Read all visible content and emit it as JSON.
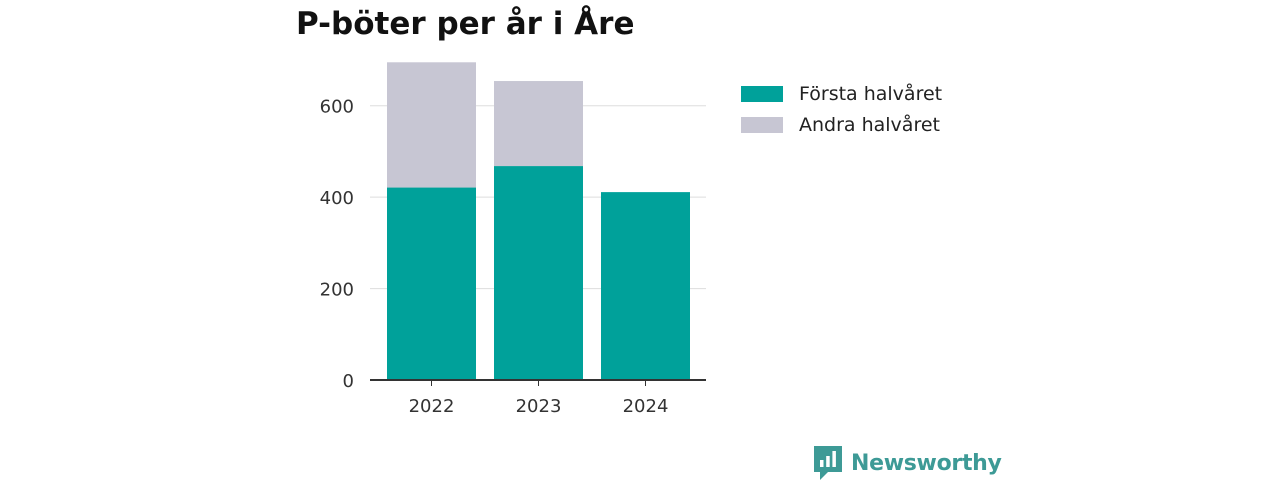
{
  "chart_data": {
    "type": "bar",
    "stacked": true,
    "title": "P-böter per år i Åre",
    "xlabel": "",
    "ylabel": "",
    "categories": [
      "2022",
      "2023",
      "2024"
    ],
    "series": [
      {
        "name": "Första halvåret",
        "values": [
          421,
          468,
          411
        ],
        "color": "#00a19a"
      },
      {
        "name": "Andra halvåret",
        "values": [
          274,
          186,
          0
        ],
        "color": "#c7c6d3"
      }
    ],
    "ylim": [
      0,
      700
    ],
    "yticks": [
      0,
      200,
      400,
      600
    ],
    "grid": true,
    "legend_position": "top-right"
  },
  "brand": {
    "name": "Newsworthy",
    "color": "#3d9a96",
    "icon": "newsworthy-logo-icon"
  }
}
